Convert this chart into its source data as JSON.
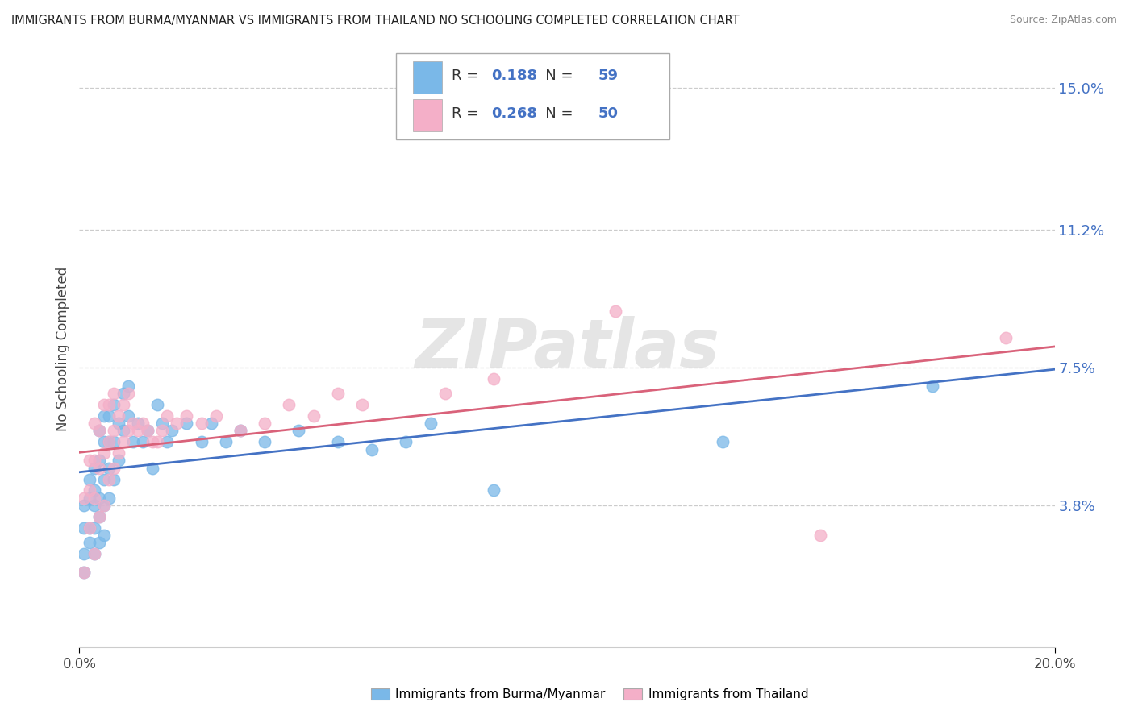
{
  "title": "IMMIGRANTS FROM BURMA/MYANMAR VS IMMIGRANTS FROM THAILAND NO SCHOOLING COMPLETED CORRELATION CHART",
  "source": "Source: ZipAtlas.com",
  "ylabel": "No Schooling Completed",
  "xlim": [
    0.0,
    0.2
  ],
  "ylim": [
    0.0,
    0.16
  ],
  "watermark": "ZIPatlas",
  "legend_burma_R": 0.188,
  "legend_burma_N": 59,
  "legend_thailand_R": 0.268,
  "legend_thailand_N": 50,
  "burma_color": "#7ab8e8",
  "thailand_color": "#f4afc8",
  "burma_line_color": "#4472c4",
  "thailand_line_color": "#d9627a",
  "background_color": "#ffffff",
  "grid_color": "#cccccc",
  "title_color": "#222222",
  "right_tick_color": "#4472c4",
  "ytick_vals": [
    0.038,
    0.075,
    0.112,
    0.15
  ],
  "ytick_labels": [
    "3.8%",
    "7.5%",
    "11.2%",
    "15.0%"
  ],
  "burma_legend_label": "Immigrants from Burma/Myanmar",
  "thailand_legend_label": "Immigrants from Thailand",
  "burma_x": [
    0.001,
    0.001,
    0.001,
    0.001,
    0.002,
    0.002,
    0.002,
    0.002,
    0.003,
    0.003,
    0.003,
    0.003,
    0.003,
    0.004,
    0.004,
    0.004,
    0.004,
    0.004,
    0.005,
    0.005,
    0.005,
    0.005,
    0.005,
    0.006,
    0.006,
    0.006,
    0.006,
    0.007,
    0.007,
    0.007,
    0.008,
    0.008,
    0.009,
    0.009,
    0.01,
    0.01,
    0.011,
    0.012,
    0.013,
    0.014,
    0.015,
    0.016,
    0.017,
    0.018,
    0.019,
    0.022,
    0.025,
    0.027,
    0.03,
    0.033,
    0.038,
    0.045,
    0.053,
    0.06,
    0.067,
    0.072,
    0.085,
    0.132,
    0.175
  ],
  "burma_y": [
    0.02,
    0.025,
    0.032,
    0.038,
    0.028,
    0.032,
    0.04,
    0.045,
    0.025,
    0.032,
    0.038,
    0.042,
    0.048,
    0.028,
    0.035,
    0.04,
    0.05,
    0.058,
    0.03,
    0.038,
    0.045,
    0.055,
    0.062,
    0.04,
    0.048,
    0.055,
    0.062,
    0.045,
    0.055,
    0.065,
    0.05,
    0.06,
    0.058,
    0.068,
    0.062,
    0.07,
    0.055,
    0.06,
    0.055,
    0.058,
    0.048,
    0.065,
    0.06,
    0.055,
    0.058,
    0.06,
    0.055,
    0.06,
    0.055,
    0.058,
    0.055,
    0.058,
    0.055,
    0.053,
    0.055,
    0.06,
    0.042,
    0.055,
    0.07
  ],
  "thailand_x": [
    0.001,
    0.001,
    0.002,
    0.002,
    0.002,
    0.003,
    0.003,
    0.003,
    0.003,
    0.004,
    0.004,
    0.004,
    0.005,
    0.005,
    0.005,
    0.006,
    0.006,
    0.006,
    0.007,
    0.007,
    0.007,
    0.008,
    0.008,
    0.009,
    0.009,
    0.01,
    0.01,
    0.011,
    0.012,
    0.013,
    0.014,
    0.015,
    0.016,
    0.017,
    0.018,
    0.02,
    0.022,
    0.025,
    0.028,
    0.033,
    0.038,
    0.043,
    0.048,
    0.053,
    0.058,
    0.075,
    0.085,
    0.11,
    0.152,
    0.19
  ],
  "thailand_y": [
    0.02,
    0.04,
    0.032,
    0.042,
    0.05,
    0.025,
    0.04,
    0.05,
    0.06,
    0.035,
    0.048,
    0.058,
    0.038,
    0.052,
    0.065,
    0.045,
    0.055,
    0.065,
    0.048,
    0.058,
    0.068,
    0.052,
    0.062,
    0.055,
    0.065,
    0.058,
    0.068,
    0.06,
    0.058,
    0.06,
    0.058,
    0.055,
    0.055,
    0.058,
    0.062,
    0.06,
    0.062,
    0.06,
    0.062,
    0.058,
    0.06,
    0.065,
    0.062,
    0.068,
    0.065,
    0.068,
    0.072,
    0.09,
    0.03,
    0.083
  ]
}
